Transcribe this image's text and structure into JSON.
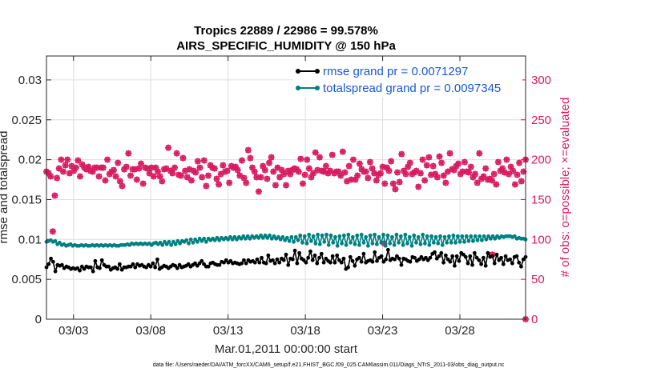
{
  "chart_data": {
    "type": "line",
    "title": "Tropics 22889 / 22986 = 99.578%",
    "subtitle": "AIRS_SPECIFIC_HUMIDITY @ 150 hPa",
    "xlabel": "Mar.01,2011 00:00:00 start",
    "ylabel_left": "rmse and totalspread",
    "ylabel_right": "# of obs: o=possible; ×=evaluated",
    "footnote": "data file: /Users/raeder/DAI/ATM_forcXX/CAM6_setup/f.e21.FHIST_BGC.f09_025.CAM6assim.011/Diags_NTrS_2011-03/obs_diag_output.nc",
    "x_ticks": [
      "03/03",
      "03/08",
      "03/13",
      "03/18",
      "03/23",
      "03/28"
    ],
    "x_tick_days": [
      3,
      8,
      13,
      18,
      23,
      28
    ],
    "xlim_days": [
      1.25,
      32.25
    ],
    "ylim_left": [
      0,
      0.033
    ],
    "yticks_left": [
      "0",
      "0.005",
      "0.01",
      "0.015",
      "0.02",
      "0.025",
      "0.03"
    ],
    "ylim_right": [
      0,
      330
    ],
    "yticks_right": [
      "0",
      "50",
      "100",
      "150",
      "200",
      "250",
      "300"
    ],
    "grid": true,
    "legend_position": "top-right",
    "series": [
      {
        "name": "rmse grand pr = 0.0071297",
        "axis": "left",
        "color": "#000000",
        "values": [
          0.0065,
          0.0069,
          0.0076,
          0.0072,
          0.006,
          0.0068,
          0.0067,
          0.0068,
          0.0064,
          0.0066,
          0.0065,
          0.0063,
          0.0064,
          0.0063,
          0.0064,
          0.0061,
          0.0066,
          0.0063,
          0.0066,
          0.0065,
          0.0065,
          0.006,
          0.0073,
          0.0065,
          0.0064,
          0.0074,
          0.0068,
          0.0066,
          0.0066,
          0.0062,
          0.0064,
          0.0065,
          0.0063,
          0.0069,
          0.0062,
          0.0065,
          0.0065,
          0.0066,
          0.0066,
          0.0069,
          0.0065,
          0.0069,
          0.0067,
          0.0068,
          0.0066,
          0.0065,
          0.0068,
          0.0066,
          0.007,
          0.0065,
          0.0075,
          0.0063,
          0.0065,
          0.0067,
          0.0066,
          0.0064,
          0.0066,
          0.0068,
          0.0067,
          0.0064,
          0.0068,
          0.0065,
          0.0066,
          0.0067,
          0.0069,
          0.0066,
          0.0068,
          0.007,
          0.0067,
          0.007,
          0.0073,
          0.0069,
          0.0066,
          0.0066,
          0.007,
          0.0071,
          0.0069,
          0.0068,
          0.0068,
          0.0072,
          0.0071,
          0.0074,
          0.0071,
          0.0073,
          0.007,
          0.0071,
          0.007,
          0.0069,
          0.007,
          0.0074,
          0.007,
          0.0074,
          0.0072,
          0.0073,
          0.0071,
          0.0075,
          0.0071,
          0.0077,
          0.0071,
          0.007,
          0.008,
          0.0073,
          0.0074,
          0.007,
          0.0075,
          0.0071,
          0.0076,
          0.0074,
          0.0081,
          0.0068,
          0.0076,
          0.0075,
          0.0086,
          0.007,
          0.0083,
          0.0076,
          0.0074,
          0.0071,
          0.0077,
          0.0085,
          0.0074,
          0.008,
          0.007,
          0.0077,
          0.0082,
          0.0071,
          0.0076,
          0.0073,
          0.0071,
          0.0079,
          0.0071,
          0.008,
          0.0074,
          0.0071,
          0.0076,
          0.0063,
          0.0065,
          0.0078,
          0.0073,
          0.0067,
          0.0075,
          0.0077,
          0.0072,
          0.0082,
          0.0071,
          0.0073,
          0.0074,
          0.0072,
          0.0084,
          0.0073,
          0.0077,
          0.0079,
          0.0072,
          0.0075,
          0.0087,
          0.0074,
          0.0076,
          0.0075,
          0.0079,
          0.0076,
          0.0068,
          0.0076,
          0.0075,
          0.0073,
          0.0072,
          0.0078,
          0.0077,
          0.0073,
          0.0075,
          0.0078,
          0.0075,
          0.0077,
          0.0074,
          0.0077,
          0.0082,
          0.0084,
          0.0076,
          0.0079,
          0.0083,
          0.0071,
          0.008,
          0.0075,
          0.0072,
          0.0079,
          0.0067,
          0.0079,
          0.0073,
          0.0083,
          0.0081,
          0.0078,
          0.007,
          0.0079,
          0.0068,
          0.0083,
          0.0077,
          0.0074,
          0.0069,
          0.0077,
          0.0067,
          0.0083,
          0.0078,
          0.0079,
          0.007,
          0.0081,
          0.0074,
          0.0077,
          0.0069,
          0.0079,
          0.0074,
          0.0075,
          0.007,
          0.0078,
          0.0079,
          0.0071,
          0.0066,
          0.0075,
          0.0078
        ]
      },
      {
        "name": "totalspread grand pr = 0.0097345",
        "axis": "left",
        "color": "#008080",
        "values": [
          0.0097,
          0.0098,
          0.0099,
          0.0097,
          0.0098,
          0.0094,
          0.0096,
          0.0093,
          0.0094,
          0.0092,
          0.0093,
          0.0094,
          0.0092,
          0.0093,
          0.0092,
          0.0092,
          0.0093,
          0.0092,
          0.0093,
          0.0092,
          0.0092,
          0.0093,
          0.0092,
          0.0093,
          0.0092,
          0.0093,
          0.0092,
          0.0093,
          0.0092,
          0.0093,
          0.0092,
          0.0093,
          0.0092,
          0.0092,
          0.0093,
          0.0093,
          0.0093,
          0.0094,
          0.0093,
          0.0095,
          0.0094,
          0.0095,
          0.0094,
          0.0095,
          0.0094,
          0.0095,
          0.0094,
          0.0095,
          0.0093,
          0.0095,
          0.0096,
          0.0094,
          0.0096,
          0.0093,
          0.0097,
          0.0094,
          0.0097,
          0.0093,
          0.0097,
          0.0094,
          0.0098,
          0.0095,
          0.0098,
          0.0097,
          0.0099,
          0.0095,
          0.01,
          0.0096,
          0.01,
          0.0097,
          0.0101,
          0.0098,
          0.0101,
          0.0097,
          0.0101,
          0.0099,
          0.0101,
          0.0099,
          0.0102,
          0.0099,
          0.0102,
          0.01,
          0.0102,
          0.01,
          0.0103,
          0.01,
          0.0103,
          0.01,
          0.0103,
          0.0101,
          0.0104,
          0.0101,
          0.0104,
          0.0101,
          0.0104,
          0.0102,
          0.0104,
          0.0102,
          0.0105,
          0.0102,
          0.0105,
          0.0102,
          0.0105,
          0.0101,
          0.0104,
          0.0101,
          0.0103,
          0.01,
          0.0103,
          0.0099,
          0.0102,
          0.0098,
          0.0103,
          0.0097,
          0.0103,
          0.0099,
          0.0105,
          0.0096,
          0.0104,
          0.0095,
          0.0106,
          0.0098,
          0.0104,
          0.0095,
          0.0106,
          0.0094,
          0.0105,
          0.0097,
          0.0106,
          0.0093,
          0.0105,
          0.0096,
          0.0103,
          0.0092,
          0.0104,
          0.0095,
          0.0105,
          0.0093,
          0.0106,
          0.0096,
          0.0103,
          0.0094,
          0.0105,
          0.0093,
          0.0106,
          0.0096,
          0.0103,
          0.0092,
          0.0105,
          0.0095,
          0.0106,
          0.0094,
          0.0103,
          0.0096,
          0.0106,
          0.0092,
          0.0105,
          0.0095,
          0.0103,
          0.0093,
          0.0106,
          0.0096,
          0.0104,
          0.0093,
          0.0106,
          0.0095,
          0.0103,
          0.0092,
          0.0105,
          0.0096,
          0.0103,
          0.0094,
          0.0106,
          0.0095,
          0.0104,
          0.0093,
          0.0104,
          0.0096,
          0.0103,
          0.0095,
          0.0104,
          0.0093,
          0.0103,
          0.0096,
          0.0104,
          0.0096,
          0.0105,
          0.0096,
          0.0104,
          0.0097,
          0.0104,
          0.0097,
          0.0104,
          0.0098,
          0.0104,
          0.0098,
          0.0104,
          0.0099,
          0.0104,
          0.0099,
          0.0104,
          0.01,
          0.0104,
          0.0101,
          0.0104,
          0.0101,
          0.0104,
          0.0102,
          0.0104,
          0.0103,
          0.0104,
          0.0104,
          0.0104,
          0.0103,
          0.0104,
          0.0101,
          0.0102,
          0.0101,
          0.0101,
          0.01
        ]
      },
      {
        "name": "possible",
        "axis": "right",
        "color": "#d81b60",
        "marker": "o",
        "values": [
          185,
          183,
          179,
          110,
          155,
          177,
          189,
          200,
          185,
          193,
          200,
          183,
          192,
          186,
          190,
          199,
          179,
          194,
          190,
          188,
          191,
          186,
          185,
          190,
          190,
          179,
          190,
          190,
          174,
          200,
          182,
          185,
          187,
          179,
          196,
          173,
          167,
          188,
          191,
          208,
          180,
          188,
          188,
          175,
          189,
          195,
          170,
          190,
          189,
          183,
          190,
          179,
          190,
          185,
          179,
          173,
          188,
          189,
          215,
          186,
          183,
          190,
          208,
          181,
          180,
          202,
          186,
          178,
          188,
          174,
          186,
          184,
          198,
          190,
          178,
          199,
          167,
          180,
          193,
          190,
          189,
          176,
          169,
          182,
          193,
          185,
          186,
          171,
          192,
          190,
          191,
          187,
          180,
          199,
          177,
          171,
          212,
          202,
          190,
          185,
          178,
          160,
          178,
          192,
          187,
          176,
          196,
          203,
          185,
          168,
          190,
          178,
          187,
          182,
          168,
          186,
          182,
          187,
          189,
          188,
          185,
          201,
          170,
          181,
          200,
          189,
          178,
          183,
          209,
          187,
          203,
          186,
          185,
          192,
          183,
          186,
          206,
          183,
          185,
          185,
          180,
          210,
          184,
          173,
          192,
          175,
          200,
          175,
          180,
          195,
          188,
          185,
          185,
          177,
          197,
          189,
          183,
          174,
          181,
          183,
          191,
          170,
          190,
          186,
          198,
          170,
          163,
          184,
          172,
          207,
          186,
          182,
          191,
          196,
          182,
          184,
          186,
          166,
          183,
          200,
          174,
          193,
          203,
          181,
          192,
          182,
          178,
          204,
          196,
          180,
          171,
          185,
          208,
          188,
          187,
          192,
          195,
          182,
          185,
          197,
          185,
          184,
          191,
          178,
          182,
          171,
          208,
          176,
          179,
          189,
          175,
          176,
          174,
          182,
          169,
          197,
          186,
          189,
          184,
          200,
          182,
          191,
          186,
          169,
          181,
          196,
          173,
          185,
          200
        ]
      },
      {
        "name": "evaluated",
        "axis": "right",
        "color": "#d81b60",
        "marker": "x",
        "values": [
          185,
          183,
          179,
          110,
          155,
          177,
          189,
          200,
          185,
          193,
          200,
          183,
          192,
          186,
          190,
          199,
          179,
          194,
          190,
          188,
          191,
          186,
          185,
          190,
          190,
          179,
          190,
          190,
          174,
          200,
          182,
          185,
          187,
          179,
          196,
          173,
          167,
          188,
          191,
          208,
          180,
          188,
          188,
          175,
          189,
          195,
          170,
          190,
          189,
          183,
          190,
          179,
          190,
          185,
          179,
          173,
          188,
          189,
          215,
          186,
          183,
          190,
          208,
          181,
          180,
          202,
          186,
          178,
          188,
          174,
          186,
          184,
          198,
          190,
          178,
          199,
          167,
          180,
          193,
          190,
          189,
          176,
          169,
          182,
          193,
          185,
          186,
          171,
          192,
          190,
          191,
          187,
          180,
          199,
          177,
          171,
          212,
          202,
          190,
          185,
          178,
          160,
          178,
          192,
          187,
          176,
          196,
          203,
          185,
          168,
          190,
          178,
          187,
          182,
          168,
          186,
          182,
          187,
          189,
          188,
          185,
          201,
          170,
          181,
          200,
          189,
          178,
          183,
          209,
          187,
          203,
          186,
          185,
          192,
          183,
          186,
          206,
          183,
          185,
          185,
          180,
          210,
          184,
          173,
          192,
          175,
          200,
          175,
          180,
          195,
          188,
          185,
          185,
          177,
          197,
          189,
          183,
          174,
          181,
          183,
          191,
          170,
          190,
          186,
          198,
          170,
          163,
          184,
          172,
          207,
          186,
          182,
          191,
          196,
          182,
          184,
          186,
          166,
          183,
          200,
          174,
          193,
          203,
          181,
          192,
          182,
          178,
          204,
          196,
          180,
          171,
          185,
          208,
          188,
          187,
          192,
          195,
          182,
          185,
          197,
          185,
          184,
          191,
          178,
          182,
          171,
          208,
          176,
          179,
          189,
          175,
          176,
          174,
          182,
          169,
          197,
          186,
          189,
          184,
          200,
          182,
          191,
          186,
          169,
          181,
          196,
          173,
          185,
          200
        ]
      }
    ],
    "outliers_right": [
      {
        "day": 23.1,
        "value": 95
      },
      {
        "day": 30.1,
        "value": 81
      },
      {
        "day": 32.25,
        "value": 0
      }
    ]
  }
}
